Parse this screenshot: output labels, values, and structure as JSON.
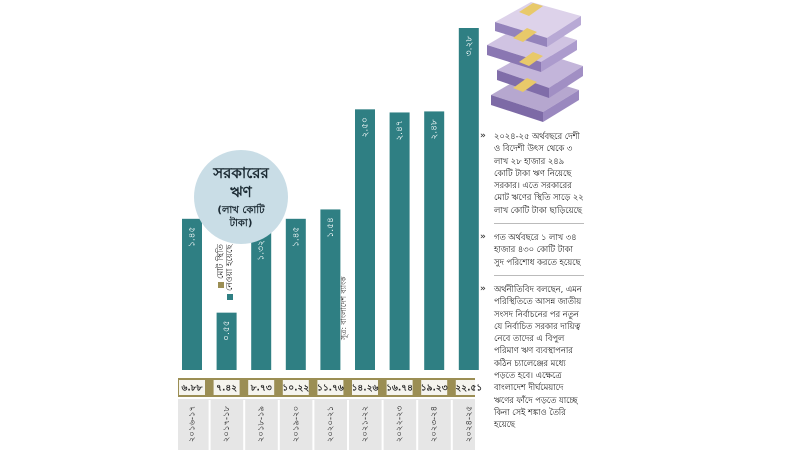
{
  "title": "সরকারের ঋণ",
  "unit": "(লাখ কোটি টাকা)",
  "legend": [
    {
      "label": "মোট স্থিতি",
      "color": "#9b8e54"
    },
    {
      "label": "নেওয়া হয়েছে",
      "color": "#2f7f83"
    }
  ],
  "source": "সূত্র: বাংলাদেশ ব্যাংক",
  "notes": [
    "২০২৪-২৫ অর্থবছরে দেশী ও বিদেশী উৎস থেকে ৩ লাখ ২৮ হাজার ২৪৯ কোটি টাকা ঋণ নিয়েছে সরকার। এতে সরকারের মোট ঋণের স্থিতি সাড়ে ২২ লাখ কোটি টাকা ছাড়িয়েছে",
    "গত অর্থবছরে ১ লাখ ৩৪ হাজার ৪৩০ কোটি টাকা সুদ পরিশোধ করতে হয়েছে",
    "অর্থনীতিবিদ বলছেন, এমন পরিস্থিতিতে আসন্ন জাতীয় সংসদ নির্বাচনের পর নতুন যে নির্বাচিত সরকার দায়িত্ব নেবে তাদের এ বিপুল পরিমাণ ঋণ ব্যবস্থাপনার কঠিন চ্যালেঞ্জের মধ্যে পড়তে হবে। এক্ষেত্রে বাংলাদেশ দীর্ঘমেয়াদে ঋণের ফাঁদে পড়তে যাচ্ছে কিনা সেই শঙ্কাও তৈরি হয়েছে"
  ],
  "colors": {
    "borrowed": "#2f7f83",
    "total": "#9b8e54",
    "year_band": "#e6e6e6"
  },
  "image": {
    "icon": "banknote-stack-icon"
  },
  "chart_data": {
    "type": "bar",
    "categories": [
      "২০১৬-১৭",
      "২০১৭-১৮",
      "২০১৮-১৯",
      "২০১৯-২০",
      "২০২০-২১",
      "২০২১-২২",
      "২০২২-২৩",
      "২০২৩-২৪",
      "২০২৪-২৫"
    ],
    "series": [
      {
        "name": "নেওয়া হয়েছে",
        "values": [
          1.45,
          0.55,
          1.32,
          1.45,
          1.54,
          2.5,
          2.47,
          2.48,
          3.28
        ],
        "labels": [
          "১.৪৫",
          "০.৫৫",
          "১.৩২",
          "১.৪৫",
          "১.৫৪",
          "২.৫০",
          "২.৪৭",
          "২.৪৮",
          "৩.২৮"
        ]
      },
      {
        "name": "মোট স্থিতি",
        "values": [
          6.88,
          7.42,
          8.73,
          10.22,
          11.76,
          14.26,
          16.74,
          19.23,
          22.51
        ],
        "labels": [
          "৬.৮৮",
          "৭.৪২",
          "৮.৭৩",
          "১০.২২",
          "১১.৭৬",
          "১৪.২৬",
          "১৬.৭৪",
          "১৯.২৩",
          "২২.৫১"
        ]
      }
    ],
    "ylim": [
      0,
      3.28
    ],
    "grid": false,
    "legend_position": "left"
  }
}
